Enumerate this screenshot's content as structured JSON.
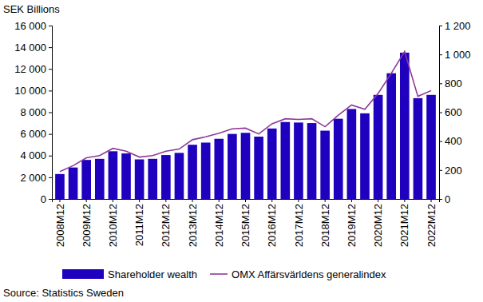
{
  "chart_data": {
    "type": "bar",
    "y_label": "SEK Billions",
    "source": "Source: Statistics Sweden",
    "legend": "bottom",
    "categories": [
      "2008M12",
      null,
      "2009M12",
      null,
      "2010M12",
      null,
      "2011M12",
      null,
      "2012M12",
      null,
      "2013M12",
      null,
      "2014M12",
      null,
      "2015M12",
      null,
      "2016M12",
      null,
      "2017M12",
      null,
      "2018M12",
      null,
      "2019M12",
      null,
      "2020M12",
      null,
      "2021M12",
      null,
      "2022M12"
    ],
    "series": [
      {
        "name": "Shareholder wealth",
        "type": "bar",
        "color": "#1e00be",
        "values": [
          2300,
          2900,
          3600,
          3700,
          4400,
          4200,
          3650,
          3700,
          4050,
          4250,
          5000,
          5200,
          5550,
          6000,
          6100,
          5750,
          6500,
          7100,
          7050,
          7000,
          6300,
          7400,
          8300,
          7900,
          9600,
          11600,
          13500,
          9300,
          9600
        ]
      },
      {
        "name": "OMX Affärsvärldens generalindex",
        "type": "line",
        "axis": "y2",
        "color": "#8e3a9a",
        "values": [
          190,
          230,
          285,
          300,
          350,
          330,
          290,
          300,
          330,
          345,
          410,
          430,
          455,
          485,
          490,
          450,
          520,
          555,
          550,
          555,
          500,
          580,
          650,
          620,
          730,
          870,
          1020,
          710,
          750
        ]
      }
    ],
    "ylim": [
      0,
      16000
    ],
    "yticks": [
      0,
      {
        "value": 2000,
        "label": "2 000"
      },
      {
        "value": 4000,
        "label": "4 000"
      },
      {
        "value": 6000,
        "label": "6 000"
      },
      {
        "value": 8000,
        "label": "8 000"
      },
      {
        "value": 10000,
        "label": "10 000"
      },
      {
        "value": 12000,
        "label": "12 000"
      },
      {
        "value": 14000,
        "label": "14 000"
      },
      {
        "value": 16000,
        "label": "16 000"
      }
    ],
    "y2lim": [
      0,
      1200
    ],
    "y2ticks": [
      0,
      200,
      400,
      600,
      800,
      {
        "value": 1000,
        "label": "1 000"
      },
      {
        "value": 1200,
        "label": "1 200"
      }
    ],
    "grid": false
  }
}
